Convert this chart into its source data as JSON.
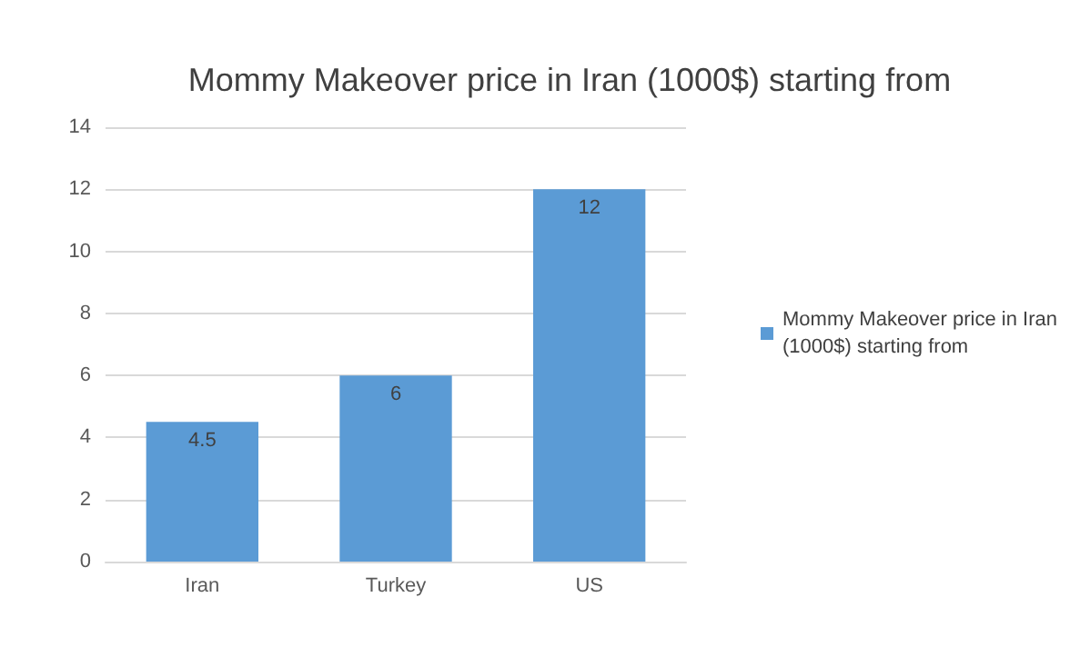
{
  "chart_data": {
    "type": "bar",
    "title": "Mommy Makeover price in Iran (1000$) starting from",
    "categories": [
      "Iran",
      "Turkey",
      "US"
    ],
    "series": [
      {
        "name": "Mommy Makeover price in Iran (1000$) starting from",
        "color": "#5b9bd5",
        "values": [
          4.5,
          6,
          12
        ]
      }
    ],
    "ylim": [
      0,
      14
    ],
    "yticks": [
      0,
      2,
      4,
      6,
      8,
      10,
      12,
      14
    ],
    "grid": "y",
    "legend": "right",
    "data_labels": true
  }
}
